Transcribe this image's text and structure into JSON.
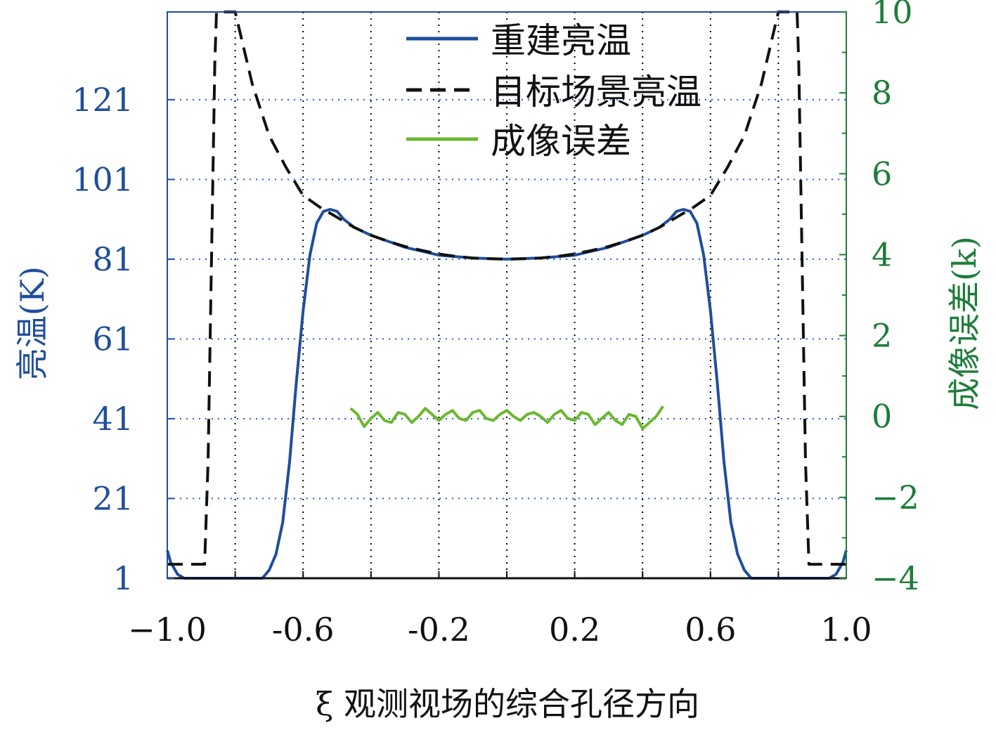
{
  "chart_data": {
    "type": "line",
    "xlabel": "ξ 观测视场的综合孔径方向",
    "ylabel_left": "亮温(K)",
    "ylabel_right": "成像误差(k)",
    "xlim": [
      -1.0,
      1.0
    ],
    "ylim_left": [
      1,
      143
    ],
    "ylim_right": [
      -4,
      10
    ],
    "x_ticks": [
      "−1.0",
      "-0.6",
      "-0.2",
      "0.2",
      "0.6",
      "1.0"
    ],
    "x_tick_values": [
      -1.0,
      -0.6,
      -0.2,
      0.2,
      0.6,
      1.0
    ],
    "y_left_ticks": [
      "1",
      "21",
      "41",
      "61",
      "81",
      "101",
      "121"
    ],
    "y_left_tick_values": [
      1,
      21,
      41,
      61,
      81,
      101,
      121
    ],
    "y_right_ticks": [
      "−4",
      "−2",
      "0",
      "2",
      "4",
      "6",
      "8",
      "10"
    ],
    "y_right_tick_values": [
      -4,
      -2,
      0,
      2,
      4,
      6,
      8,
      10
    ],
    "grid": true,
    "legend_position": "top-center",
    "colors": {
      "reconstructed": "#1f4e9c",
      "target": "#111111",
      "error": "#6bb82e",
      "left_axis": "#1f4e9c",
      "right_axis": "#1e7d3a"
    },
    "series": [
      {
        "name": "重建亮温",
        "axis": "left",
        "style": "solid",
        "x": [
          -1.0,
          -0.99,
          -0.97,
          -0.95,
          -0.9,
          -0.85,
          -0.8,
          -0.75,
          -0.72,
          -0.7,
          -0.68,
          -0.66,
          -0.64,
          -0.62,
          -0.6,
          -0.58,
          -0.56,
          -0.54,
          -0.52,
          -0.5,
          -0.48,
          -0.45,
          -0.4,
          -0.3,
          -0.2,
          -0.1,
          0.0,
          0.1,
          0.2,
          0.3,
          0.4,
          0.45,
          0.48,
          0.5,
          0.52,
          0.54,
          0.56,
          0.58,
          0.6,
          0.62,
          0.64,
          0.66,
          0.68,
          0.7,
          0.72,
          0.75,
          0.8,
          0.85,
          0.9,
          0.95,
          0.97,
          0.99,
          1.0
        ],
        "y": [
          8,
          5,
          2,
          1,
          0.5,
          1,
          0.5,
          0.5,
          1,
          3,
          7,
          15,
          30,
          50,
          68,
          82,
          90,
          93,
          93.5,
          93,
          91,
          89,
          87,
          84,
          82,
          81.3,
          81,
          81.3,
          82,
          84,
          87,
          89,
          91,
          93,
          93.5,
          93,
          90,
          82,
          68,
          50,
          30,
          15,
          7,
          3,
          1,
          0.5,
          0.5,
          1,
          0.5,
          1,
          2,
          5,
          8
        ]
      },
      {
        "name": "目标场景亮温",
        "axis": "left",
        "style": "dashed",
        "x": [
          -1.0,
          -0.9,
          -0.89,
          -0.88,
          -0.87,
          -0.86,
          -0.855,
          -0.8,
          -0.75,
          -0.7,
          -0.65,
          -0.6,
          -0.55,
          -0.5,
          -0.45,
          -0.4,
          -0.35,
          -0.3,
          -0.25,
          -0.2,
          -0.15,
          -0.1,
          -0.05,
          0.0,
          0.05,
          0.1,
          0.15,
          0.2,
          0.25,
          0.3,
          0.35,
          0.4,
          0.45,
          0.5,
          0.55,
          0.6,
          0.65,
          0.7,
          0.75,
          0.8,
          0.855,
          0.86,
          0.87,
          0.88,
          0.89,
          0.9,
          1.0
        ],
        "y": [
          4.5,
          4.5,
          4.5,
          30,
          80,
          130,
          145,
          143,
          125,
          112,
          104,
          97,
          94,
          91.5,
          89,
          87,
          85.5,
          84.2,
          83.2,
          82.3,
          81.7,
          81.3,
          81.1,
          81,
          81.1,
          81.3,
          81.7,
          82.3,
          83.2,
          84.2,
          85.5,
          87,
          89,
          91.5,
          94,
          97,
          104,
          112,
          125,
          143,
          145,
          130,
          80,
          30,
          4.5,
          4.5,
          4.5
        ]
      },
      {
        "name": "成像误差",
        "axis": "right",
        "style": "solid",
        "x": [
          -0.46,
          -0.44,
          -0.42,
          -0.4,
          -0.38,
          -0.36,
          -0.34,
          -0.32,
          -0.3,
          -0.28,
          -0.26,
          -0.24,
          -0.22,
          -0.2,
          -0.18,
          -0.16,
          -0.14,
          -0.12,
          -0.1,
          -0.08,
          -0.06,
          -0.04,
          -0.02,
          0.0,
          0.02,
          0.04,
          0.06,
          0.08,
          0.1,
          0.12,
          0.14,
          0.16,
          0.18,
          0.2,
          0.22,
          0.24,
          0.26,
          0.28,
          0.3,
          0.32,
          0.34,
          0.36,
          0.38,
          0.4,
          0.42,
          0.44,
          0.46
        ],
        "y": [
          0.2,
          0.05,
          -0.25,
          -0.05,
          0.1,
          -0.1,
          -0.15,
          0.1,
          0.05,
          -0.15,
          0.0,
          0.2,
          0.05,
          -0.1,
          0.05,
          0.15,
          -0.05,
          -0.1,
          0.1,
          0.15,
          -0.05,
          -0.1,
          0.05,
          0.15,
          0.0,
          -0.1,
          0.05,
          0.1,
          0.0,
          -0.15,
          0.05,
          0.15,
          -0.05,
          -0.1,
          0.1,
          0.05,
          -0.2,
          -0.05,
          0.1,
          -0.1,
          -0.2,
          0.05,
          0.0,
          -0.3,
          -0.15,
          0.0,
          0.25
        ]
      }
    ]
  }
}
